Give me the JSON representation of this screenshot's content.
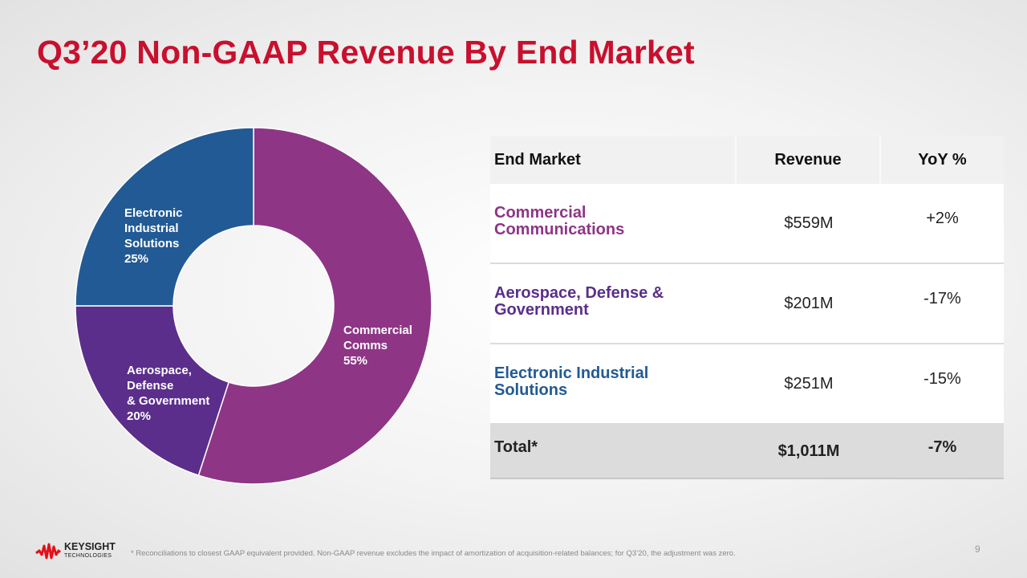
{
  "title": "Q3’20 Non-GAAP Revenue By End Market",
  "chart_data": {
    "type": "pie",
    "variant": "donut",
    "start": "top, clockwise",
    "slices": [
      {
        "name": "Commercial Comms",
        "value": 55,
        "label_lines": [
          "Commercial",
          "Comms",
          "55%"
        ],
        "color": "#8e3586"
      },
      {
        "name": "Aerospace, Defense & Government",
        "value": 20,
        "label_lines": [
          "Aerospace,",
          "Defense",
          "& Government",
          "20%"
        ],
        "color": "#5b2e8b"
      },
      {
        "name": "Electronic Industrial Solutions",
        "value": 25,
        "label_lines": [
          "Electronic",
          "Industrial",
          "Solutions",
          "25%"
        ],
        "color": "#225a95"
      }
    ]
  },
  "table": {
    "headers": [
      "End Market",
      "Revenue",
      "YoY %"
    ],
    "rows": [
      {
        "market_lines": [
          "Commercial",
          "Communications"
        ],
        "revenue": "$559M",
        "yoy": "+2%",
        "color": "#8e3586"
      },
      {
        "market_lines": [
          "Aerospace, Defense &",
          "Government"
        ],
        "revenue": "$201M",
        "yoy": "-17%",
        "color": "#5b2e8b"
      },
      {
        "market_lines": [
          "Electronic Industrial",
          "Solutions"
        ],
        "revenue": "$251M",
        "yoy": "-15%",
        "color": "#225a95"
      }
    ],
    "total": {
      "label": "Total*",
      "revenue": "$1,011M",
      "yoy": "-7%"
    }
  },
  "logo": {
    "name": "KEYSIGHT",
    "sub": "TECHNOLOGIES",
    "color": "#e3101a"
  },
  "footnote": "* Reconciliations to closest GAAP equivalent provided. Non-GAAP revenue excludes the impact of  amortization of acquisition-related balances; for Q3’20, the adjustment was zero.",
  "page_number": "9"
}
